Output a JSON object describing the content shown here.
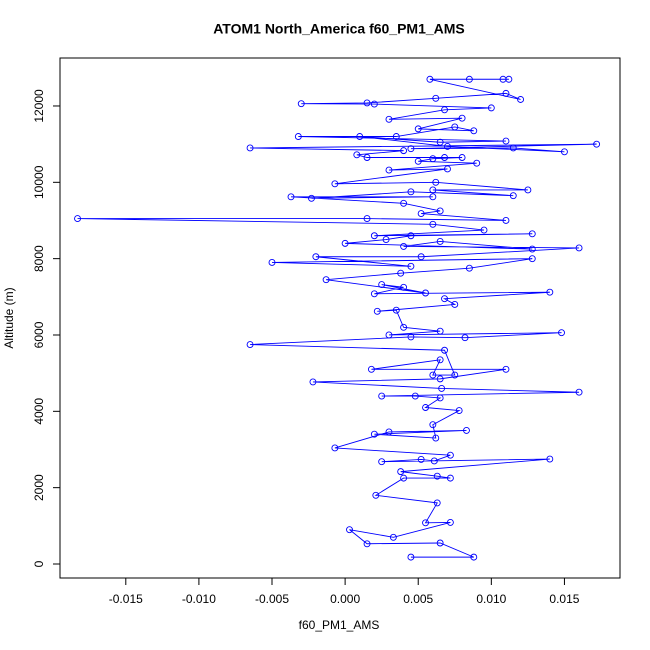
{
  "chart_data": {
    "type": "line",
    "title": "ATOM1 North_America f60_PM1_AMS",
    "x_label": "f60_PM1_AMS",
    "y_label": "Altitude (m)",
    "color": "#0000ff",
    "x": [
      0.0045,
      0.0088,
      0.0065,
      0.0015,
      0.0003,
      0.0033,
      0.0072,
      0.0055,
      0.0063,
      0.0021,
      0.004,
      0.0072,
      0.0063,
      0.0038,
      0.014,
      0.0025,
      0.0052,
      0.0061,
      0.0072,
      -0.0007,
      0.003,
      0.0083,
      0.002,
      0.0062,
      0.006,
      0.0078,
      0.0055,
      0.0065,
      0.0048,
      0.0025,
      0.016,
      0.0066,
      -0.0022,
      0.0065,
      0.011,
      0.0018,
      0.0065,
      0.006,
      0.0075,
      0.0068,
      -0.0065,
      0.0045,
      0.0082,
      0.0148,
      0.003,
      0.0065,
      0.004,
      0.0035,
      0.0022,
      0.0075,
      0.0068,
      0.014,
      0.002,
      0.004,
      0.0025,
      0.0055,
      -0.0013,
      0.0038,
      0.0085,
      0.0128,
      -0.005,
      0.0045,
      -0.002,
      0.0052,
      0.016,
      0.004,
      0.0065,
      0.0128,
      0.0,
      0.0028,
      0.0045,
      0.0128,
      0.002,
      0.0095,
      0.006,
      -0.0183,
      0.0015,
      0.011,
      0.0052,
      0.0065,
      0.004,
      -0.0037,
      0.006,
      -0.0023,
      0.0045,
      0.0115,
      0.006,
      0.0125,
      0.0062,
      -0.0007,
      0.007,
      0.003,
      0.009,
      0.005,
      0.006,
      0.008,
      0.0068,
      0.0015,
      0.0008,
      0.004,
      -0.0065,
      0.0172,
      0.0045,
      0.0115,
      0.015,
      0.007,
      0.001,
      0.0065,
      0.011,
      -0.0032,
      0.0035,
      0.0075,
      0.0088,
      0.005,
      0.008,
      0.003,
      0.0068,
      0.01,
      0.002,
      -0.003,
      0.0015,
      0.0062,
      0.011,
      0.012,
      0.0058,
      0.0085,
      0.0108,
      0.0112
    ],
    "values": [
      180,
      180,
      550,
      530,
      900,
      700,
      1090,
      1080,
      1600,
      1800,
      2250,
      2250,
      2300,
      2420,
      2750,
      2680,
      2740,
      2700,
      2850,
      3040,
      3460,
      3500,
      3400,
      3300,
      3650,
      4020,
      4100,
      4350,
      4400,
      4400,
      4500,
      4600,
      4770,
      4850,
      5100,
      5100,
      5350,
      4950,
      4950,
      5600,
      5750,
      5950,
      5930,
      6060,
      6000,
      6100,
      6200,
      6650,
      6620,
      6800,
      6950,
      7120,
      7080,
      7250,
      7320,
      7100,
      7450,
      7620,
      7750,
      8000,
      7900,
      7800,
      8050,
      8050,
      8280,
      8320,
      8450,
      8250,
      8400,
      8500,
      8600,
      8650,
      8600,
      8750,
      8900,
      9050,
      9050,
      9000,
      9180,
      9250,
      9450,
      9620,
      9620,
      9580,
      9750,
      9650,
      9800,
      9800,
      10000,
      9960,
      10350,
      10320,
      10500,
      10550,
      10620,
      10650,
      10650,
      10650,
      10720,
      10830,
      10900,
      11000,
      10880,
      10900,
      10800,
      10940,
      11200,
      11050,
      11080,
      11200,
      11200,
      11450,
      11350,
      11400,
      11680,
      11650,
      11900,
      11950,
      12050,
      12060,
      12080,
      12200,
      12330,
      12170,
      12700,
      12700,
      12700,
      12700
    ],
    "xlim": [
      -0.0195,
      0.0188
    ],
    "ylim": [
      -367,
      13257
    ],
    "xticks": [
      -0.015,
      {
        "value": -0.01,
        "label": "-0.010"
      },
      -0.005,
      {
        "value": 0,
        "label": "0.000"
      },
      0.005,
      {
        "value": 0.01,
        "label": "0.010"
      },
      0.015
    ],
    "yticks": [
      0,
      2000,
      4000,
      6000,
      8000,
      10000,
      12000
    ]
  }
}
